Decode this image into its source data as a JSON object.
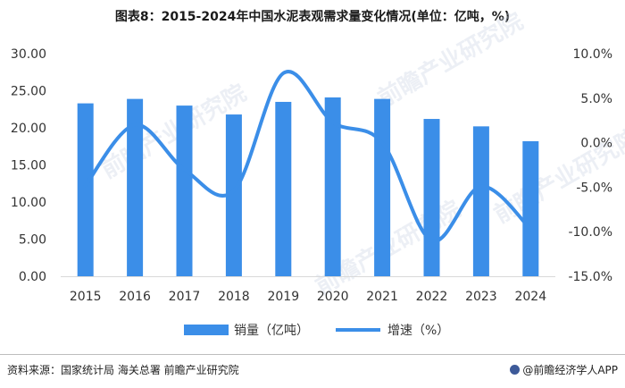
{
  "title": "图表8：2015-2024年中国水泥表观需求量变化情况(单位：亿吨，%)",
  "source": "资料来源：国家统计局 海关总署 前瞻产业研究院",
  "brand": "@前瞻经济学人APP",
  "watermark": "前瞻产业研究院",
  "colors": {
    "bar": "#3b8ee8",
    "line": "#3b8ee8",
    "axis": "#d9d9d9",
    "text": "#333333"
  },
  "chart_data": {
    "type": "bar+line",
    "categories": [
      "2015",
      "2016",
      "2017",
      "2018",
      "2019",
      "2020",
      "2021",
      "2022",
      "2023",
      "2024"
    ],
    "series": [
      {
        "name": "销量（亿吨）",
        "type": "bar",
        "axis": "left",
        "values": [
          23.3,
          23.9,
          23.0,
          21.8,
          23.5,
          24.1,
          23.9,
          21.2,
          20.2,
          18.2
        ]
      },
      {
        "name": "增速（%）",
        "type": "line",
        "axis": "right",
        "values": [
          -4.8,
          2.0,
          -3.0,
          -5.4,
          7.8,
          2.3,
          0.0,
          -11.0,
          -4.9,
          -9.7
        ]
      }
    ],
    "y_left": {
      "min": 0,
      "max": 30,
      "ticks": [
        "0.00",
        "5.00",
        "10.00",
        "15.00",
        "20.00",
        "25.00",
        "30.00"
      ]
    },
    "y_right": {
      "min": -15,
      "max": 10,
      "ticks": [
        "-15.0%",
        "-10.0%",
        "-5.0%",
        "0.0%",
        "5.0%",
        "10.0%"
      ]
    },
    "grid": false,
    "legend_position": "bottom"
  }
}
